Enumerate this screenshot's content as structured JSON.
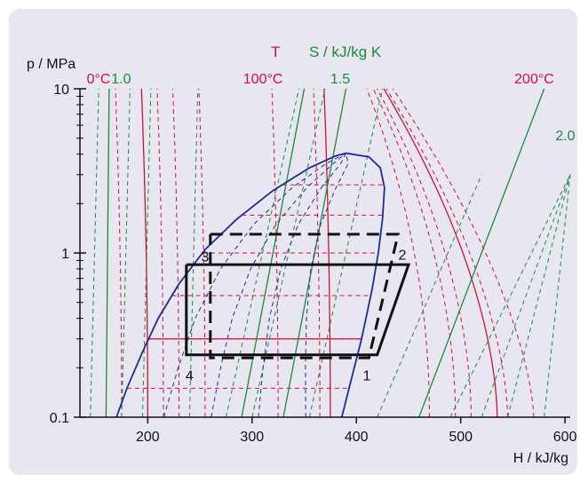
{
  "chart_data": {
    "type": "line",
    "title": "",
    "xlabel": "H / kJ/kg",
    "ylabel": "p / MPa",
    "xlim": [
      135,
      605
    ],
    "ylim": [
      0.1,
      10
    ],
    "yscale": "log",
    "x_ticks": [
      200,
      300,
      400,
      500,
      600
    ],
    "y_ticks": [
      {
        "value": 0.1,
        "label": "0.1"
      },
      {
        "value": 1,
        "label": "1"
      },
      {
        "value": 10,
        "label": "10"
      }
    ],
    "isotherm_header": "T",
    "isentrope_header": "S / kJ/kg K",
    "isotherm_labels": [
      {
        "text": "0°C",
        "T": 0,
        "h": 150
      },
      {
        "text": "100°C",
        "T": 100,
        "h": 300
      },
      {
        "text": "200°C",
        "T": 200,
        "h": 560
      }
    ],
    "isentrope_labels": [
      {
        "text": "1.0",
        "s": 1.0,
        "h": 165
      },
      {
        "text": "1.5",
        "s": 1.5,
        "h": 375
      },
      {
        "text": "2.0",
        "s": 2.0,
        "h": 584
      }
    ],
    "saturation_dome": {
      "liquid": [
        [
          170,
          0.1
        ],
        [
          180,
          0.15
        ],
        [
          195,
          0.25
        ],
        [
          210,
          0.4
        ],
        [
          230,
          0.65
        ],
        [
          255,
          1.05
        ],
        [
          285,
          1.6
        ],
        [
          320,
          2.4
        ],
        [
          355,
          3.3
        ],
        [
          380,
          3.9
        ]
      ],
      "critical": [
        390,
        4.05
      ],
      "vapor": [
        [
          390,
          4.05
        ],
        [
          412,
          3.85
        ],
        [
          423,
          3.3
        ],
        [
          427,
          2.5
        ],
        [
          425,
          1.6
        ],
        [
          421,
          1.0
        ],
        [
          415,
          0.6
        ],
        [
          405,
          0.3
        ],
        [
          393,
          0.15
        ],
        [
          386,
          0.1
        ]
      ]
    },
    "series": [
      {
        "name": "",
        "style": "dashed-black",
        "points": [
          [
            260,
            1.3
          ],
          [
            440,
            1.3
          ],
          [
            412,
            0.23
          ],
          [
            260,
            0.23
          ],
          [
            260,
            1.3
          ]
        ]
      },
      {
        "name": "",
        "style": "solid-black",
        "points": [
          [
            237,
            0.85
          ],
          [
            450,
            0.85
          ],
          [
            420,
            0.24
          ],
          [
            237,
            0.24
          ],
          [
            237,
            0.85
          ]
        ]
      }
    ],
    "state_points": [
      {
        "label": "1",
        "h": 410,
        "p": 0.22
      },
      {
        "label": "2",
        "h": 444,
        "p": 1.2
      },
      {
        "label": "3",
        "h": 255,
        "p": 1.17
      },
      {
        "label": "4",
        "h": 240,
        "p": 0.22
      }
    ],
    "isotherms_solid_h": [
      200,
      375,
      535
    ],
    "isotherms_dashed_h": [
      175,
      215,
      230,
      255,
      325,
      365,
      470,
      495,
      510,
      545,
      570
    ],
    "isentropes_solid_h": [
      160,
      290,
      330
    ],
    "isentropes_dashed_h": [
      145,
      175,
      195,
      240,
      275,
      300,
      355
    ],
    "colors": {
      "isotherm": "#d0103a",
      "isentrope": "#1b8a3a",
      "dome": "#1c2e8c",
      "axis": "#111111",
      "background": "#e8e6f0"
    }
  }
}
